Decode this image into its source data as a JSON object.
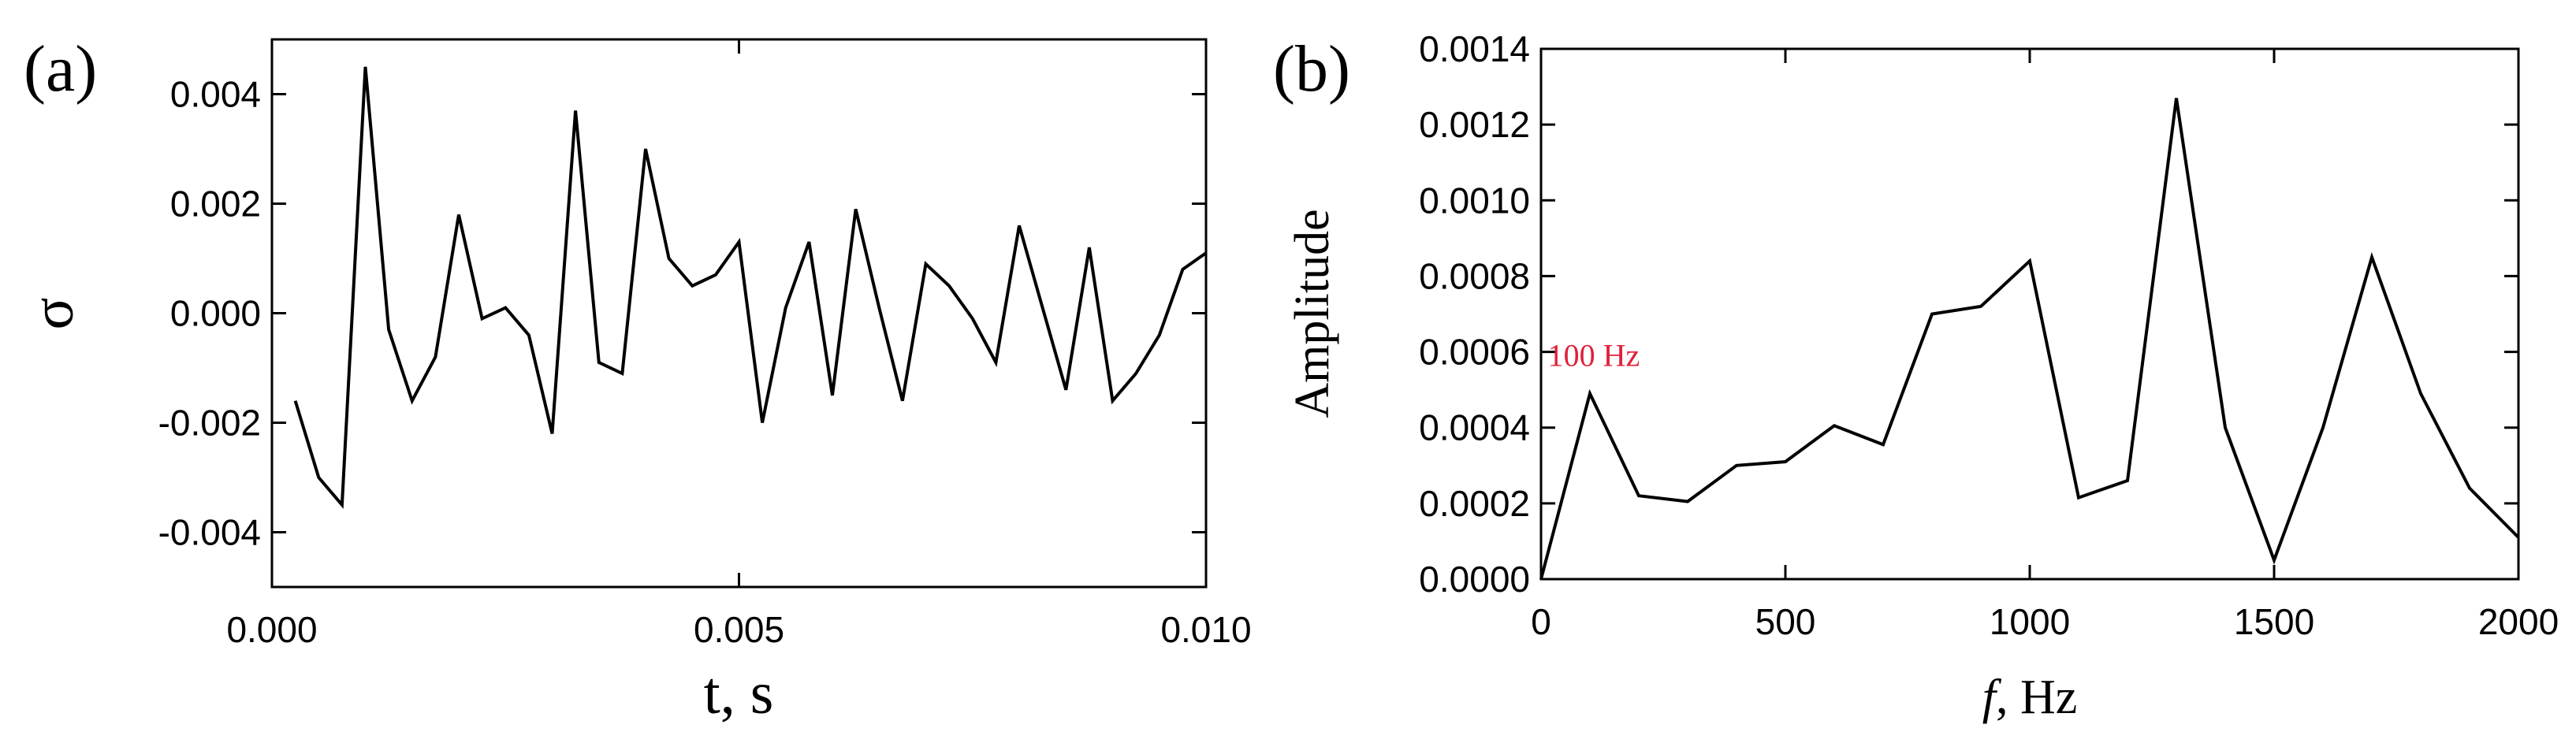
{
  "chart_data": [
    {
      "type": "line",
      "panel_label": "(a)",
      "title": "",
      "xlabel": "t, s",
      "ylabel": "σ",
      "xlim": [
        0.0,
        0.01
      ],
      "ylim": [
        -0.005,
        0.005
      ],
      "xticks": [
        "0.000",
        "0.005",
        "0.010"
      ],
      "xtick_values": [
        0.0,
        0.005,
        0.01
      ],
      "yticks": [
        "0.004",
        "0.002",
        "0.000",
        "-0.002",
        "-0.004"
      ],
      "ytick_values": [
        0.004,
        0.002,
        0.0,
        -0.002,
        -0.004
      ],
      "grid": false,
      "series": [
        {
          "x": [
            0.00025,
            0.0005,
            0.00075,
            0.001,
            0.00125,
            0.0015,
            0.00175,
            0.002,
            0.00225,
            0.0025,
            0.00275,
            0.003,
            0.00325,
            0.0035,
            0.00375,
            0.004,
            0.00425,
            0.0045,
            0.00475,
            0.005,
            0.00525,
            0.0055,
            0.00575,
            0.006,
            0.00625,
            0.0065,
            0.00675,
            0.007,
            0.00725,
            0.0075,
            0.00775,
            0.008,
            0.00825,
            0.0085,
            0.00875,
            0.009,
            0.00925,
            0.0095,
            0.00975,
            0.01
          ],
          "y": [
            -0.0016,
            -0.003,
            -0.0035,
            0.0045,
            -0.0003,
            -0.0016,
            -0.0008,
            0.0018,
            -0.0001,
            0.0001,
            -0.0004,
            -0.0022,
            0.0037,
            -0.0009,
            -0.0011,
            0.003,
            0.001,
            0.0005,
            0.0007,
            0.0013,
            -0.002,
            0.0001,
            0.0013,
            -0.0015,
            0.0019,
            0.0001,
            -0.0016,
            0.0009,
            0.0005,
            -0.0001,
            -0.0009,
            0.0016,
            0.0001,
            -0.0014,
            0.0012,
            -0.0016,
            -0.0011,
            -0.0004,
            0.0008,
            0.0011
          ]
        }
      ]
    },
    {
      "type": "line",
      "panel_label": "(b)",
      "title": "",
      "xlabel_italic": "f",
      "xlabel_rest": ", Hz",
      "ylabel": "Amplitude",
      "xlim": [
        0,
        2000
      ],
      "ylim": [
        0,
        0.0014
      ],
      "xticks": [
        "0",
        "500",
        "1000",
        "1500",
        "2000"
      ],
      "xtick_values": [
        0,
        500,
        1000,
        1500,
        2000
      ],
      "yticks": [
        "0.0000",
        "0.0002",
        "0.0004",
        "0.0006",
        "0.0008",
        "0.0010",
        "0.0012",
        "0.0014"
      ],
      "ytick_values": [
        0,
        0.0002,
        0.0004,
        0.0006,
        0.0008,
        0.001,
        0.0012,
        0.0014
      ],
      "grid": false,
      "annotation": {
        "text": "100 Hz",
        "color": "#e0203a",
        "x": 100,
        "y": 0.00049
      },
      "series": [
        {
          "x": [
            0,
            100,
            200,
            300,
            400,
            500,
            600,
            700,
            800,
            900,
            1000,
            1100,
            1200,
            1300,
            1400,
            1500,
            1600,
            1700,
            1800,
            1900,
            2000
          ],
          "y": [
            0.0,
            0.00049,
            0.00022,
            0.000205,
            0.0003,
            0.00031,
            0.000405,
            0.000355,
            0.0007,
            0.00072,
            0.00084,
            0.000215,
            0.00026,
            0.00127,
            0.0004,
            5e-05,
            0.0004,
            0.00085,
            0.00049,
            0.00024,
            0.00011
          ]
        }
      ]
    }
  ]
}
